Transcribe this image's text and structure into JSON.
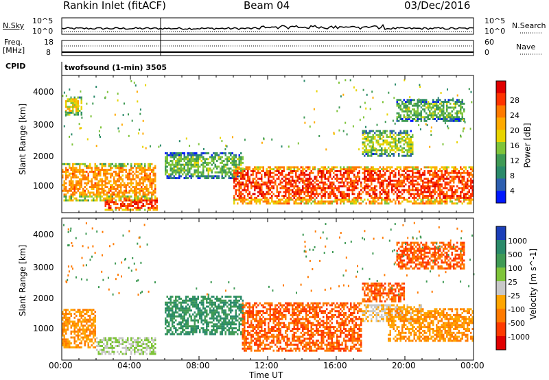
{
  "header": {
    "radar": "Rankin Inlet (fitACF)",
    "beam": "Beam 04",
    "date": "03/Dec/2016"
  },
  "top_panels": {
    "nsky_label": "N.Sky",
    "nsearch_label": "N.Search",
    "noise_ticks_left": [
      "10^5",
      "10^0"
    ],
    "noise_ticks_right": [
      "10^5",
      "10^0"
    ],
    "freq_label_1": "Freq.",
    "freq_label_2": "[MHz]",
    "nave_label": "Nave",
    "freq_ticks": [
      "18",
      "8"
    ],
    "nave_ticks": [
      "60",
      "0"
    ],
    "cpid_label": "CPID",
    "cpid_value": "twofsound (1-min) 3505"
  },
  "axes": {
    "ylabel": "Slant Range [km]",
    "xlabel": "Time UT",
    "yticks": [
      "4000",
      "3000",
      "2000",
      "1000"
    ],
    "xticks": [
      "00:00",
      "04:00",
      "08:00",
      "12:00",
      "16:00",
      "20:00",
      "00:00"
    ]
  },
  "power_colorbar": {
    "label": "Power [dB]",
    "ticks": [
      "28",
      "24",
      "20",
      "16",
      "12",
      "8",
      "4"
    ],
    "colors": [
      "#e00000",
      "#ff3300",
      "#ff7a00",
      "#ffaa00",
      "#e8d400",
      "#7fc43a",
      "#3f9a55",
      "#2a8a6a",
      "#2d5fb0",
      "#0018ff"
    ]
  },
  "velocity_colorbar": {
    "label": "Velocity [m s^-1]",
    "ticks": [
      "1000",
      "500",
      "100",
      "25",
      "-25",
      "-100",
      "-500",
      "-1000"
    ],
    "colors": [
      "#1b3fb8",
      "#2a8a6a",
      "#3f9a55",
      "#7fc43a",
      "#c8c8c8",
      "#ffa500",
      "#ff7a00",
      "#ff3a00",
      "#e00000"
    ]
  },
  "chart_data": [
    {
      "type": "heatmap",
      "title": "Power",
      "xlabel": "Time UT",
      "ylabel": "Slant Range [km]",
      "xlim": [
        "00:00",
        "24:00"
      ],
      "ylim": [
        180,
        4500
      ],
      "colorbar": "Power [dB]",
      "regions": [
        {
          "t0": 0.0,
          "t1": 5.4,
          "r0": 600,
          "r1": 1800,
          "level": 24
        },
        {
          "t0": 2.5,
          "t1": 5.5,
          "r0": 300,
          "r1": 700,
          "level": 28
        },
        {
          "t0": 6.0,
          "t1": 10.5,
          "r0": 1300,
          "r1": 2100,
          "level": 16
        },
        {
          "t0": 10.0,
          "t1": 24.0,
          "r0": 500,
          "r1": 1700,
          "level": 28
        },
        {
          "t0": 17.5,
          "t1": 20.5,
          "r0": 2000,
          "r1": 2800,
          "level": 18
        },
        {
          "t0": 19.5,
          "t1": 23.5,
          "r0": 3100,
          "r1": 3800,
          "level": 16
        },
        {
          "t0": 0.2,
          "t1": 1.2,
          "r0": 3300,
          "r1": 3900,
          "level": 20
        }
      ]
    },
    {
      "type": "heatmap",
      "title": "Velocity",
      "xlabel": "Time UT",
      "ylabel": "Slant Range [km]",
      "xlim": [
        "00:00",
        "24:00"
      ],
      "ylim": [
        180,
        4500
      ],
      "colorbar": "Velocity [m s^-1]",
      "regions": [
        {
          "t0": 0.0,
          "t1": 2.0,
          "r0": 600,
          "r1": 1800,
          "level": -100
        },
        {
          "t0": 2.0,
          "t1": 5.4,
          "r0": 400,
          "r1": 900,
          "level": 25
        },
        {
          "t0": 6.0,
          "t1": 10.5,
          "r0": 1000,
          "r1": 2200,
          "level": 500
        },
        {
          "t0": 10.5,
          "t1": 17.5,
          "r0": 500,
          "r1": 2000,
          "level": -500
        },
        {
          "t0": 17.5,
          "t1": 21.0,
          "r0": 1400,
          "r1": 1900,
          "level": -25
        },
        {
          "t0": 17.5,
          "t1": 20.0,
          "r0": 2000,
          "r1": 2600,
          "level": -500
        },
        {
          "t0": 19.0,
          "t1": 24.0,
          "r0": 800,
          "r1": 1800,
          "level": -100
        },
        {
          "t0": 19.5,
          "t1": 23.5,
          "r0": 3000,
          "r1": 3800,
          "level": -500
        }
      ]
    }
  ]
}
